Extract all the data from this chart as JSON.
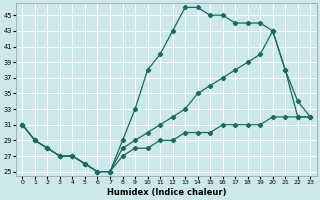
{
  "xlabel": "Humidex (Indice chaleur)",
  "bg_color": "#cce8ea",
  "grid_color": "#ffffff",
  "line_color": "#1a6b62",
  "xlim": [
    -0.5,
    23.5
  ],
  "ylim": [
    24.5,
    46.5
  ],
  "yticks": [
    25,
    27,
    29,
    31,
    33,
    35,
    37,
    39,
    41,
    43,
    45
  ],
  "xticks": [
    0,
    1,
    2,
    3,
    4,
    5,
    6,
    7,
    8,
    9,
    10,
    11,
    12,
    13,
    14,
    15,
    16,
    17,
    18,
    19,
    20,
    21,
    22,
    23
  ],
  "line_a_x": [
    0,
    1,
    2,
    3,
    4,
    5,
    6,
    7,
    8,
    9,
    10,
    11,
    12,
    13,
    14,
    15,
    16,
    17,
    18,
    19,
    20,
    21,
    22,
    23
  ],
  "line_a_y": [
    31,
    29,
    28,
    27,
    27,
    26,
    25,
    25,
    29,
    33,
    38,
    40,
    43,
    46,
    46,
    45,
    45,
    44,
    44,
    44,
    43,
    38,
    32,
    32
  ],
  "line_b_x": [
    0,
    1,
    2,
    3,
    4,
    5,
    6,
    7,
    8,
    9,
    10,
    11,
    12,
    13,
    14,
    15,
    16,
    17,
    18,
    19,
    20,
    21,
    22,
    23
  ],
  "line_b_y": [
    31,
    29,
    28,
    27,
    27,
    26,
    25,
    25,
    28,
    29,
    30,
    31,
    32,
    33,
    35,
    36,
    37,
    38,
    39,
    40,
    43,
    38,
    34,
    32
  ],
  "line_c_x": [
    0,
    1,
    2,
    3,
    4,
    5,
    6,
    7,
    8,
    9,
    10,
    11,
    12,
    13,
    14,
    15,
    16,
    17,
    18,
    19,
    20,
    21,
    22,
    23
  ],
  "line_c_y": [
    31,
    29,
    28,
    27,
    27,
    26,
    25,
    25,
    27,
    28,
    28,
    29,
    29,
    30,
    30,
    30,
    31,
    31,
    31,
    31,
    32,
    32,
    32,
    32
  ]
}
